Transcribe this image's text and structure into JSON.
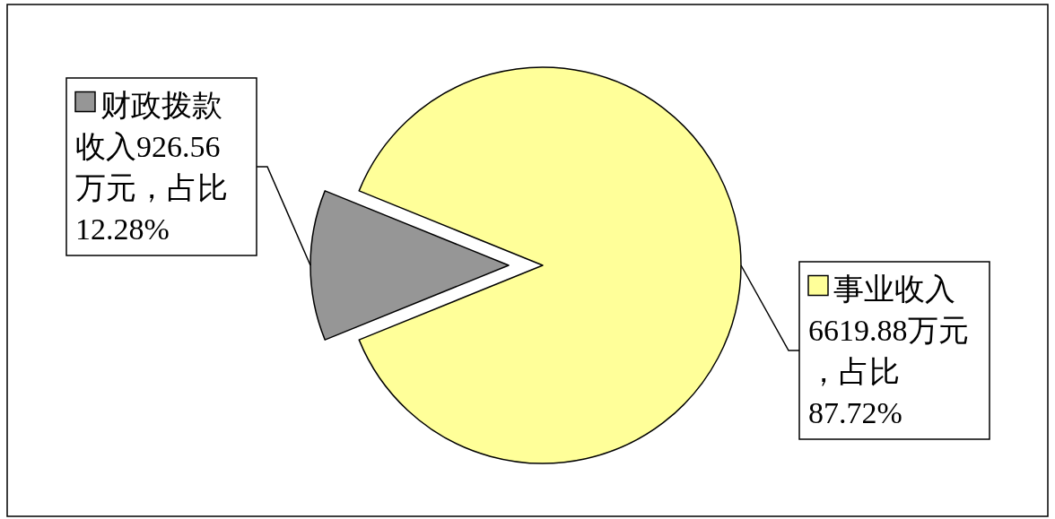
{
  "chart_data": {
    "type": "pie",
    "categories": [
      "财政拨款收入",
      "事业收入"
    ],
    "values": [
      926.56,
      6619.88
    ],
    "value_labels": [
      "926.56万元，占比12.28%",
      "6619.88万元，占比87.72%"
    ],
    "colors": [
      "#969696",
      "#ffff99"
    ],
    "legend": "left"
  }
}
